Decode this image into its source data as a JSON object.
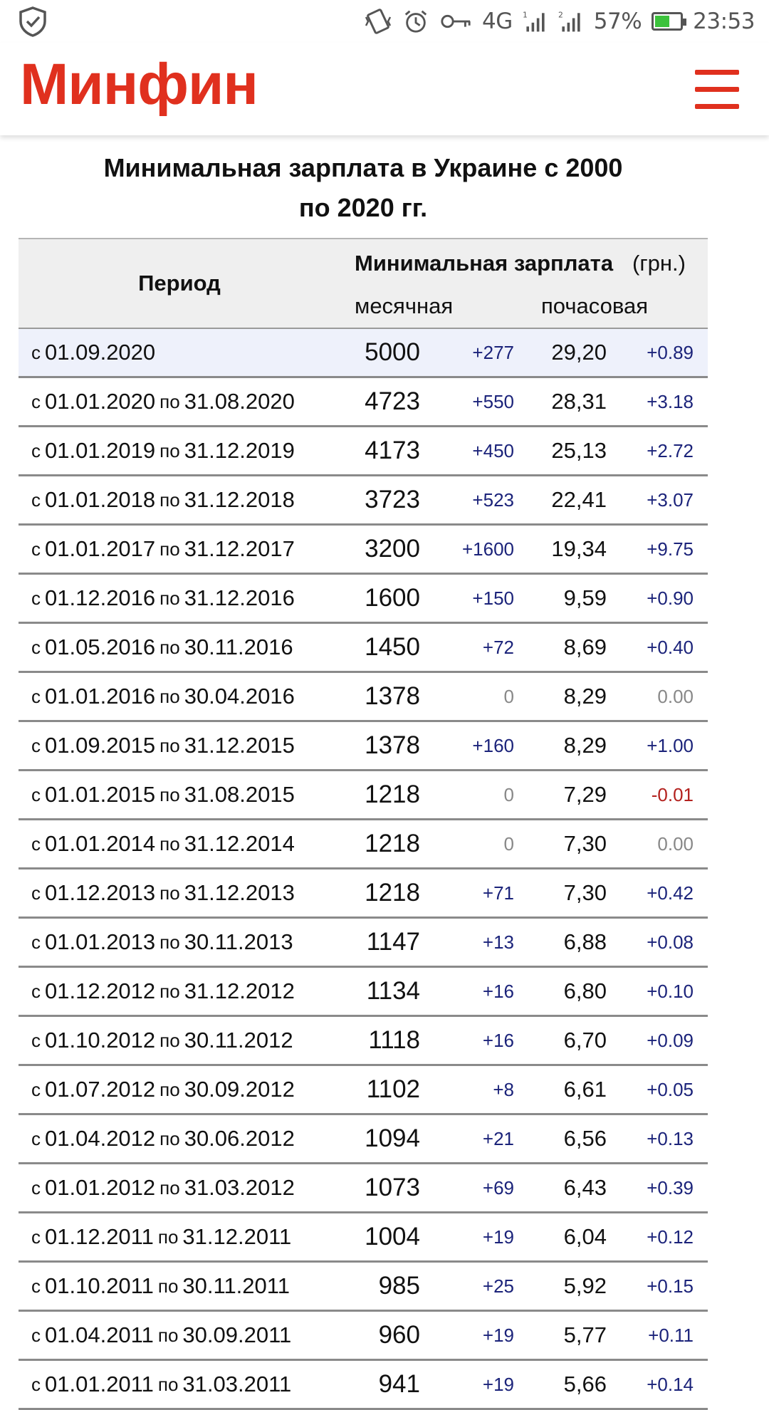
{
  "status_bar": {
    "signal_label": "4G",
    "sim1": "1",
    "sim2": "2",
    "battery": "57%",
    "time": "23:53"
  },
  "header": {
    "logo": "Минфин"
  },
  "page": {
    "title_line1": "Минимальная зарплата в Украине с 2000",
    "title_line2": "по 2020 гг."
  },
  "table": {
    "col_period": "Период",
    "col_min_salary": "Минимальная зарплата",
    "col_unit": "(грн.)",
    "col_monthly": "месячная",
    "col_hourly": "почасовая",
    "word_from": "с",
    "word_to": "по",
    "rows": [
      {
        "from": "01.09.2020",
        "to": "",
        "monthly": "5000",
        "mdelta": "+277",
        "hourly": "29,20",
        "hdelta": "+0.89"
      },
      {
        "from": "01.01.2020",
        "to": "31.08.2020",
        "monthly": "4723",
        "mdelta": "+550",
        "hourly": "28,31",
        "hdelta": "+3.18"
      },
      {
        "from": "01.01.2019",
        "to": "31.12.2019",
        "monthly": "4173",
        "mdelta": "+450",
        "hourly": "25,13",
        "hdelta": "+2.72"
      },
      {
        "from": "01.01.2018",
        "to": "31.12.2018",
        "monthly": "3723",
        "mdelta": "+523",
        "hourly": "22,41",
        "hdelta": "+3.07"
      },
      {
        "from": "01.01.2017",
        "to": "31.12.2017",
        "monthly": "3200",
        "mdelta": "+1600",
        "hourly": "19,34",
        "hdelta": "+9.75"
      },
      {
        "from": "01.12.2016",
        "to": "31.12.2016",
        "monthly": "1600",
        "mdelta": "+150",
        "hourly": "9,59",
        "hdelta": "+0.90"
      },
      {
        "from": "01.05.2016",
        "to": "30.11.2016",
        "monthly": "1450",
        "mdelta": "+72",
        "hourly": "8,69",
        "hdelta": "+0.40"
      },
      {
        "from": "01.01.2016",
        "to": "30.04.2016",
        "monthly": "1378",
        "mdelta": "0",
        "hourly": "8,29",
        "hdelta": "0.00"
      },
      {
        "from": "01.09.2015",
        "to": "31.12.2015",
        "monthly": "1378",
        "mdelta": "+160",
        "hourly": "8,29",
        "hdelta": "+1.00"
      },
      {
        "from": "01.01.2015",
        "to": "31.08.2015",
        "monthly": "1218",
        "mdelta": "0",
        "hourly": "7,29",
        "hdelta": "-0.01"
      },
      {
        "from": "01.01.2014",
        "to": "31.12.2014",
        "monthly": "1218",
        "mdelta": "0",
        "hourly": "7,30",
        "hdelta": "0.00"
      },
      {
        "from": "01.12.2013",
        "to": "31.12.2013",
        "monthly": "1218",
        "mdelta": "+71",
        "hourly": "7,30",
        "hdelta": "+0.42"
      },
      {
        "from": "01.01.2013",
        "to": "30.11.2013",
        "monthly": "1147",
        "mdelta": "+13",
        "hourly": "6,88",
        "hdelta": "+0.08"
      },
      {
        "from": "01.12.2012",
        "to": "31.12.2012",
        "monthly": "1134",
        "mdelta": "+16",
        "hourly": "6,80",
        "hdelta": "+0.10"
      },
      {
        "from": "01.10.2012",
        "to": "30.11.2012",
        "monthly": "1118",
        "mdelta": "+16",
        "hourly": "6,70",
        "hdelta": "+0.09"
      },
      {
        "from": "01.07.2012",
        "to": "30.09.2012",
        "monthly": "1102",
        "mdelta": "+8",
        "hourly": "6,61",
        "hdelta": "+0.05"
      },
      {
        "from": "01.04.2012",
        "to": "30.06.2012",
        "monthly": "1094",
        "mdelta": "+21",
        "hourly": "6,56",
        "hdelta": "+0.13"
      },
      {
        "from": "01.01.2012",
        "to": "31.03.2012",
        "monthly": "1073",
        "mdelta": "+69",
        "hourly": "6,43",
        "hdelta": "+0.39"
      },
      {
        "from": "01.12.2011",
        "to": "31.12.2011",
        "monthly": "1004",
        "mdelta": "+19",
        "hourly": "6,04",
        "hdelta": "+0.12"
      },
      {
        "from": "01.10.2011",
        "to": "30.11.2011",
        "monthly": "985",
        "mdelta": "+25",
        "hourly": "5,92",
        "hdelta": "+0.15"
      },
      {
        "from": "01.04.2011",
        "to": "30.09.2011",
        "monthly": "960",
        "mdelta": "+19",
        "hourly": "5,77",
        "hdelta": "+0.11"
      },
      {
        "from": "01.01.2011",
        "to": "31.03.2011",
        "monthly": "941",
        "mdelta": "+19",
        "hourly": "5,66",
        "hdelta": "+0.14"
      }
    ]
  },
  "colors": {
    "brand": "#e0301e",
    "delta_positive": "#1b237a",
    "delta_zero": "#888888",
    "delta_negative": "#b3211e"
  }
}
